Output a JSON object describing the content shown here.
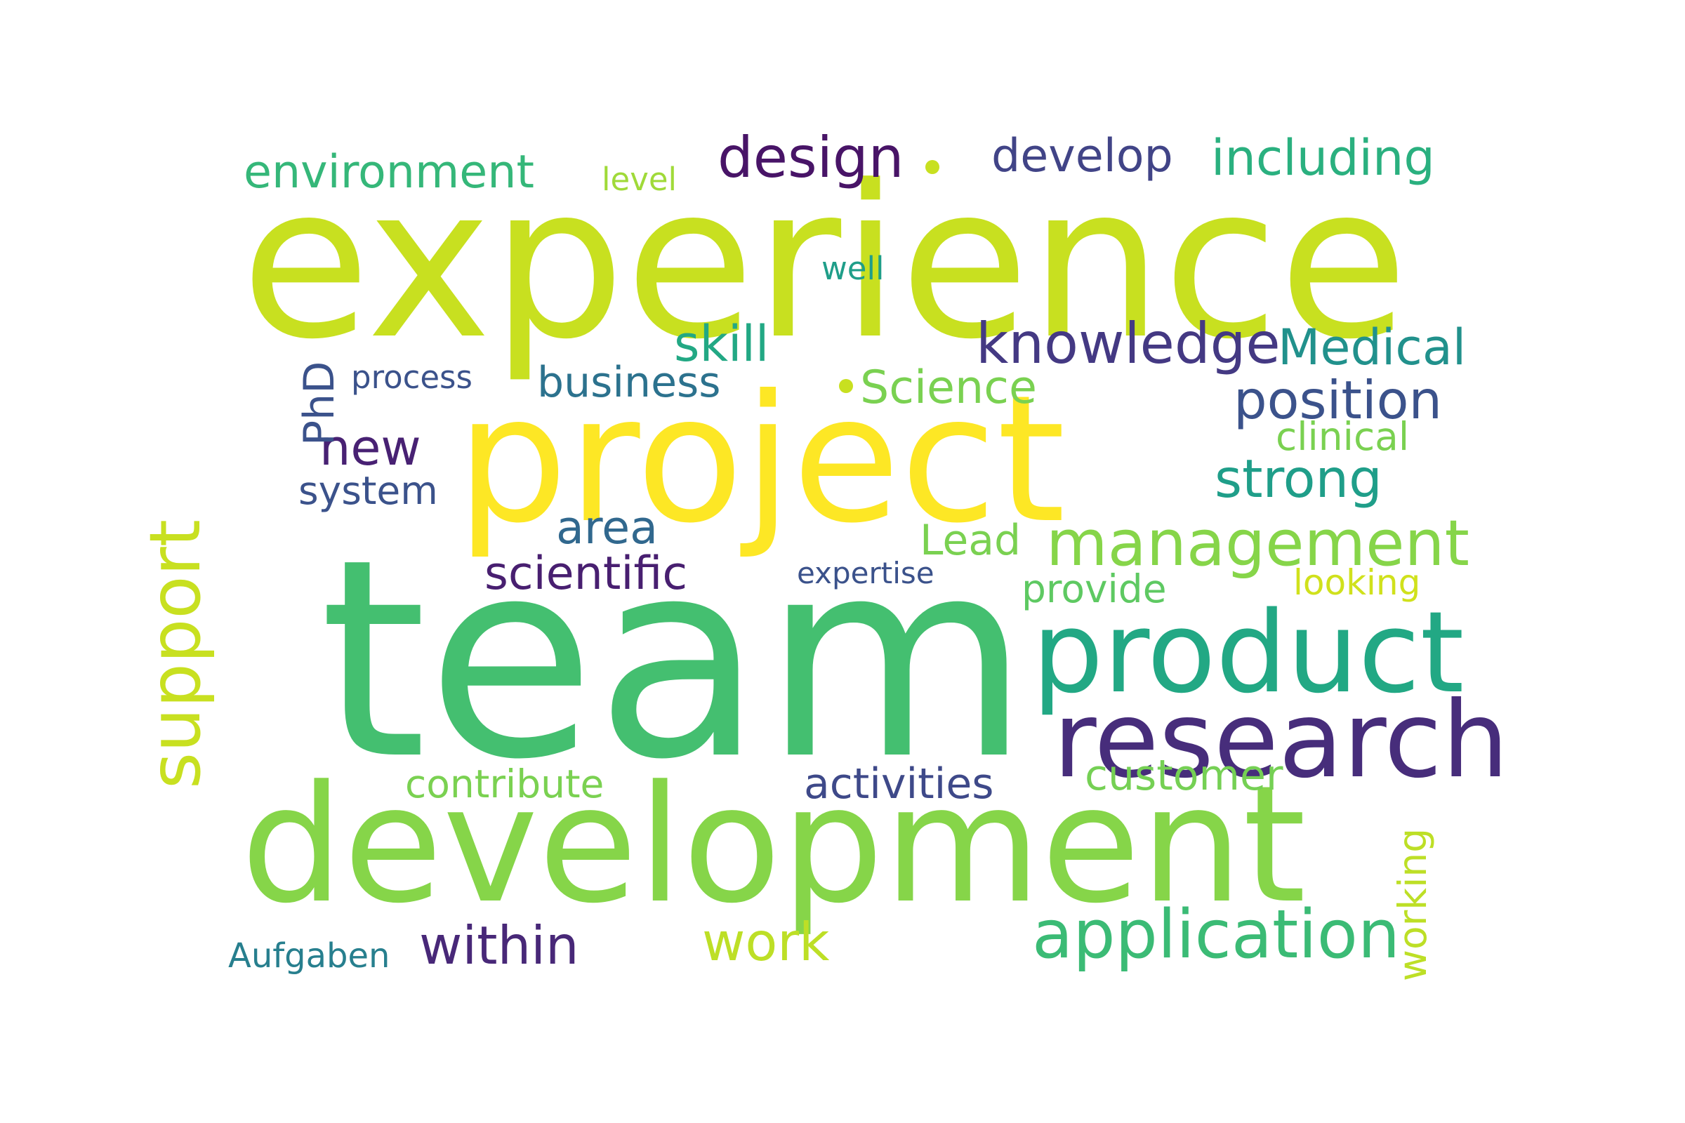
{
  "word_cloud": {
    "words": [
      {
        "text": "experience",
        "color": "#c8e020"
      },
      {
        "text": "team",
        "color": "#44bf70"
      },
      {
        "text": "project",
        "color": "#fde725"
      },
      {
        "text": "development",
        "color": "#86d549"
      },
      {
        "text": "product",
        "color": "#22a884"
      },
      {
        "text": "research",
        "color": "#472d7b"
      },
      {
        "text": "management",
        "color": "#86d549"
      },
      {
        "text": "support",
        "color": "#c8e020"
      },
      {
        "text": "application",
        "color": "#3bbb75"
      },
      {
        "text": "design",
        "color": "#481467"
      },
      {
        "text": "develop",
        "color": "#414487"
      },
      {
        "text": "including",
        "color": "#2ab07f"
      },
      {
        "text": "environment",
        "color": "#35b779"
      },
      {
        "text": "knowledge",
        "color": "#443983"
      },
      {
        "text": "Medical",
        "color": "#21918c"
      },
      {
        "text": "position",
        "color": "#3b528b"
      },
      {
        "text": "strong",
        "color": "#1f9e89"
      },
      {
        "text": "Science",
        "color": "#7ad151"
      },
      {
        "text": "business",
        "color": "#2c728e"
      },
      {
        "text": "skill",
        "color": "#22a884"
      },
      {
        "text": "new",
        "color": "#482173"
      },
      {
        "text": "area",
        "color": "#31688e"
      },
      {
        "text": "scientific",
        "color": "#481f70"
      },
      {
        "text": "within",
        "color": "#482878"
      },
      {
        "text": "work",
        "color": "#bddf26"
      },
      {
        "text": "customer",
        "color": "#75d054"
      },
      {
        "text": "activities",
        "color": "#3e4989"
      },
      {
        "text": "contribute",
        "color": "#7ad151"
      },
      {
        "text": "clinical",
        "color": "#7ad151"
      },
      {
        "text": "Lead",
        "color": "#7ad151"
      },
      {
        "text": "provide",
        "color": "#5ec962"
      },
      {
        "text": "looking",
        "color": "#d0e11c"
      },
      {
        "text": "expertise",
        "color": "#3b528b"
      },
      {
        "text": "system",
        "color": "#3b528b"
      },
      {
        "text": "process",
        "color": "#3b528b"
      },
      {
        "text": "PhD",
        "color": "#3b528b"
      },
      {
        "text": "well",
        "color": "#1f9e89"
      },
      {
        "text": "level",
        "color": "#a0da39"
      },
      {
        "text": "working",
        "color": "#bddf26"
      },
      {
        "text": "Aufgaben",
        "color": "#277f8e"
      }
    ]
  }
}
